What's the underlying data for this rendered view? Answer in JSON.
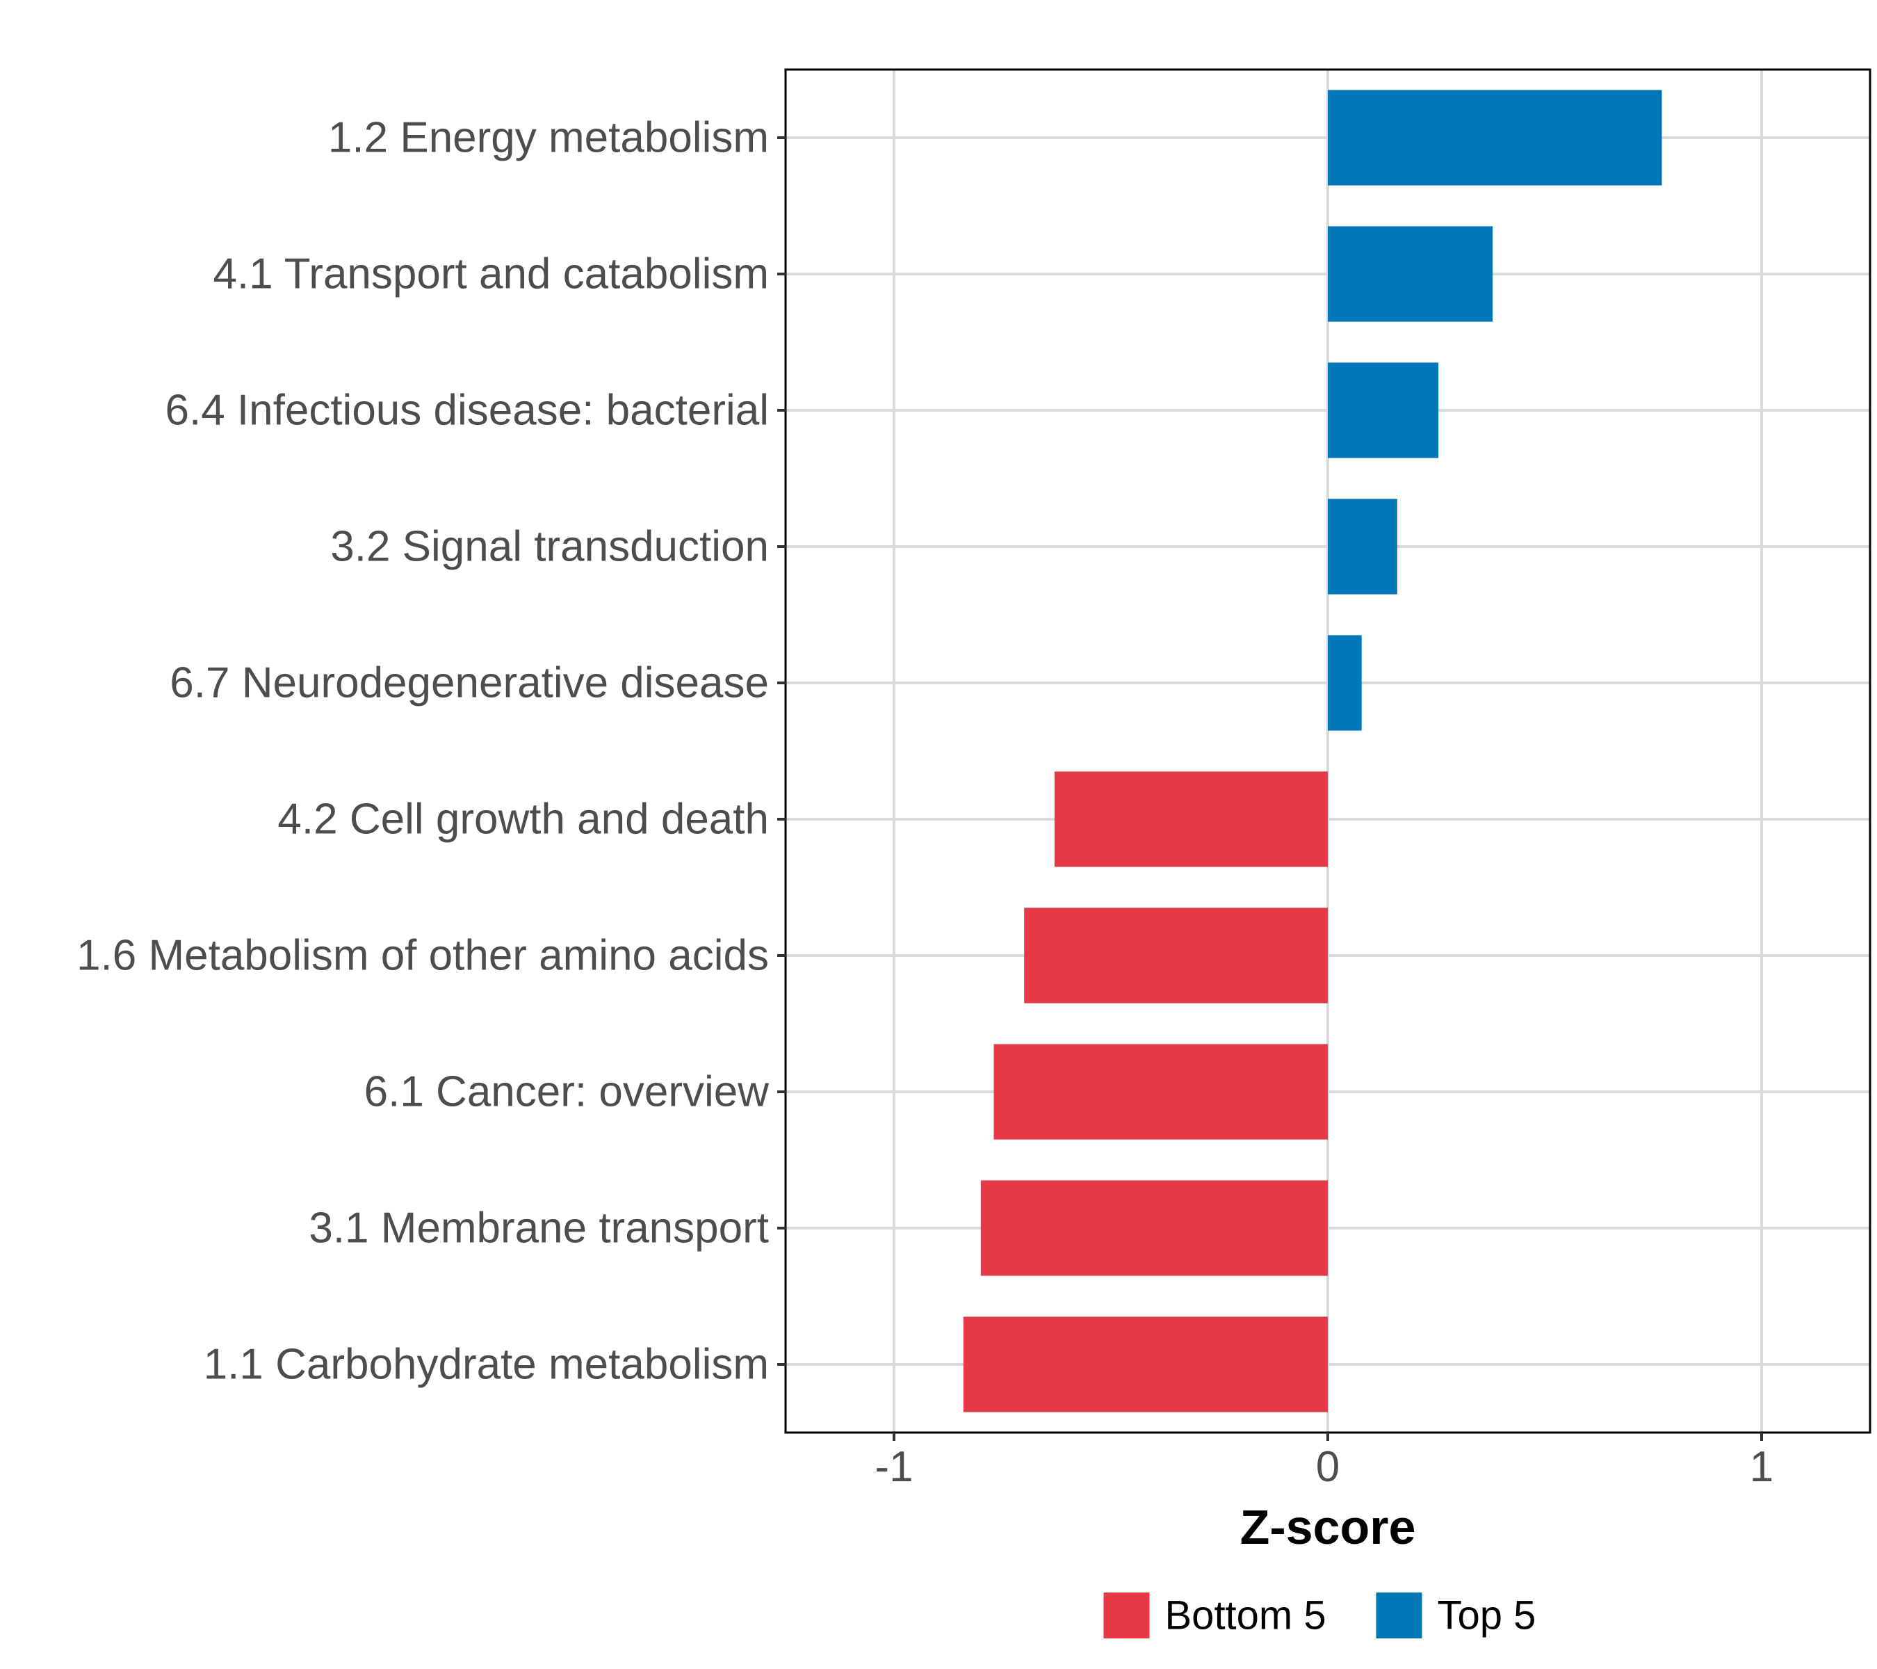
{
  "chart_data": {
    "type": "bar",
    "orientation": "horizontal",
    "title": "",
    "xlabel": "Z-score",
    "ylabel": "",
    "xlim": [
      -1.25,
      1.25
    ],
    "xticks": [
      -1,
      0,
      1
    ],
    "xtick_labels": [
      "-1",
      "0",
      "1"
    ],
    "grid": true,
    "categories": [
      "1.2 Energy metabolism",
      "4.1 Transport and catabolism",
      "6.4 Infectious disease: bacterial",
      "3.2 Signal transduction",
      "6.7 Neurodegenerative disease",
      "4.2 Cell growth and death",
      "1.6 Metabolism of other amino acids",
      "6.1 Cancer: overview",
      "3.1 Membrane transport",
      "1.1 Carbohydrate metabolism"
    ],
    "values": [
      0.77,
      0.38,
      0.255,
      0.16,
      0.078,
      -0.63,
      -0.7,
      -0.77,
      -0.8,
      -0.84
    ],
    "groups": [
      "Top 5",
      "Top 5",
      "Top 5",
      "Top 5",
      "Top 5",
      "Bottom 5",
      "Bottom 5",
      "Bottom 5",
      "Bottom 5",
      "Bottom 5"
    ],
    "legend": [
      {
        "name": "Bottom 5",
        "color": "#E63946"
      },
      {
        "name": "Top 5",
        "color": "#0077B6"
      }
    ],
    "legend_position": "bottom"
  }
}
